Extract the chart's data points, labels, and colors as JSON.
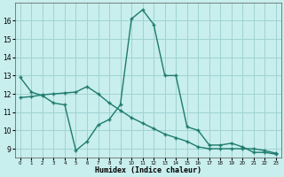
{
  "xlabel": "Humidex (Indice chaleur)",
  "bg_color": "#c8eeed",
  "grid_color": "#9ed4d2",
  "line_color": "#1e7b6e",
  "line1_x": [
    0,
    1,
    2,
    3,
    4,
    5,
    6,
    7,
    8,
    9,
    10,
    11,
    12,
    13,
    14,
    15,
    16,
    17,
    18,
    19,
    20,
    21,
    22,
    23
  ],
  "line1_y": [
    12.9,
    12.1,
    11.9,
    11.5,
    11.4,
    8.9,
    9.4,
    10.3,
    10.6,
    11.4,
    16.1,
    16.6,
    15.8,
    13.0,
    13.0,
    10.2,
    10.0,
    9.2,
    9.2,
    9.3,
    9.1,
    8.8,
    8.8,
    8.7
  ],
  "line2_x": [
    0,
    1,
    2,
    3,
    4,
    5,
    6,
    7,
    8,
    9,
    10,
    11,
    12,
    13,
    14,
    15,
    16,
    17,
    18,
    19,
    20,
    21,
    22,
    23
  ],
  "line2_y": [
    11.8,
    11.85,
    11.95,
    12.0,
    12.05,
    12.1,
    12.4,
    12.0,
    11.5,
    11.1,
    10.7,
    10.4,
    10.1,
    9.8,
    9.6,
    9.4,
    9.1,
    9.0,
    9.0,
    9.0,
    9.0,
    9.0,
    8.9,
    8.75
  ],
  "ylim": [
    8.5,
    17.0
  ],
  "yticks": [
    9,
    10,
    11,
    12,
    13,
    14,
    15,
    16
  ],
  "xlim": [
    -0.5,
    23.5
  ],
  "xticks": [
    0,
    1,
    2,
    3,
    4,
    5,
    6,
    7,
    8,
    9,
    10,
    11,
    12,
    13,
    14,
    15,
    16,
    17,
    18,
    19,
    20,
    21,
    22,
    23
  ],
  "xtick_labels": [
    "0",
    "1",
    "2",
    "3",
    "4",
    "5",
    "6",
    "7",
    "8",
    "9",
    "10",
    "11",
    "12",
    "13",
    "14",
    "15",
    "16",
    "17",
    "18",
    "19",
    "20",
    "21",
    "22",
    "23"
  ]
}
